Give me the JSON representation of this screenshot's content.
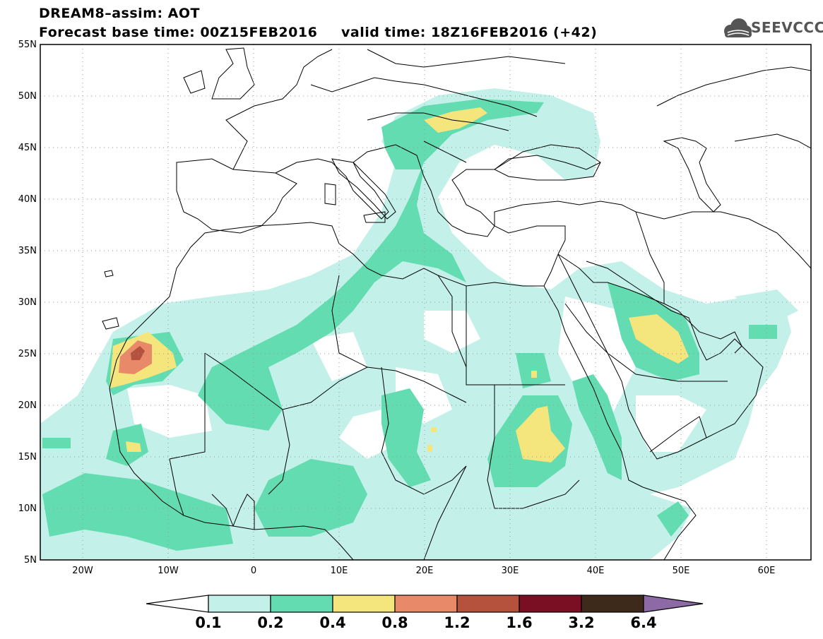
{
  "title": {
    "line1": "DREAM8–assim: AOT",
    "line2": "Forecast base time: 00Z15FEB2016",
    "valid": "valid time: 18Z16FEB2016 (+42)"
  },
  "logo": {
    "text": "SEEVCCC",
    "icon": "cloud-logo-icon"
  },
  "axes": {
    "lat_labels": [
      "55N",
      "50N",
      "45N",
      "40N",
      "35N",
      "30N",
      "25N",
      "20N",
      "15N",
      "10N",
      "5N"
    ],
    "lon_labels": [
      "20W",
      "10W",
      "0",
      "10E",
      "20E",
      "30E",
      "40E",
      "50E",
      "60E"
    ]
  },
  "colorbar": {
    "labels": [
      "0.1",
      "0.2",
      "0.4",
      "0.8",
      "1.2",
      "1.6",
      "3.2",
      "6.4"
    ],
    "colors": [
      "#ffffff",
      "#c3f0e8",
      "#62dcb0",
      "#f4e67c",
      "#e8896a",
      "#b4523e",
      "#7a0f24",
      "#3e2a1a",
      "#8d6aa6"
    ]
  },
  "colors": {
    "aot_0_1": "#c3f0e8",
    "aot_0_2": "#62dcb0",
    "aot_0_4": "#f4e67c",
    "aot_0_8": "#e8896a",
    "aot_1_2": "#b4523e"
  }
}
